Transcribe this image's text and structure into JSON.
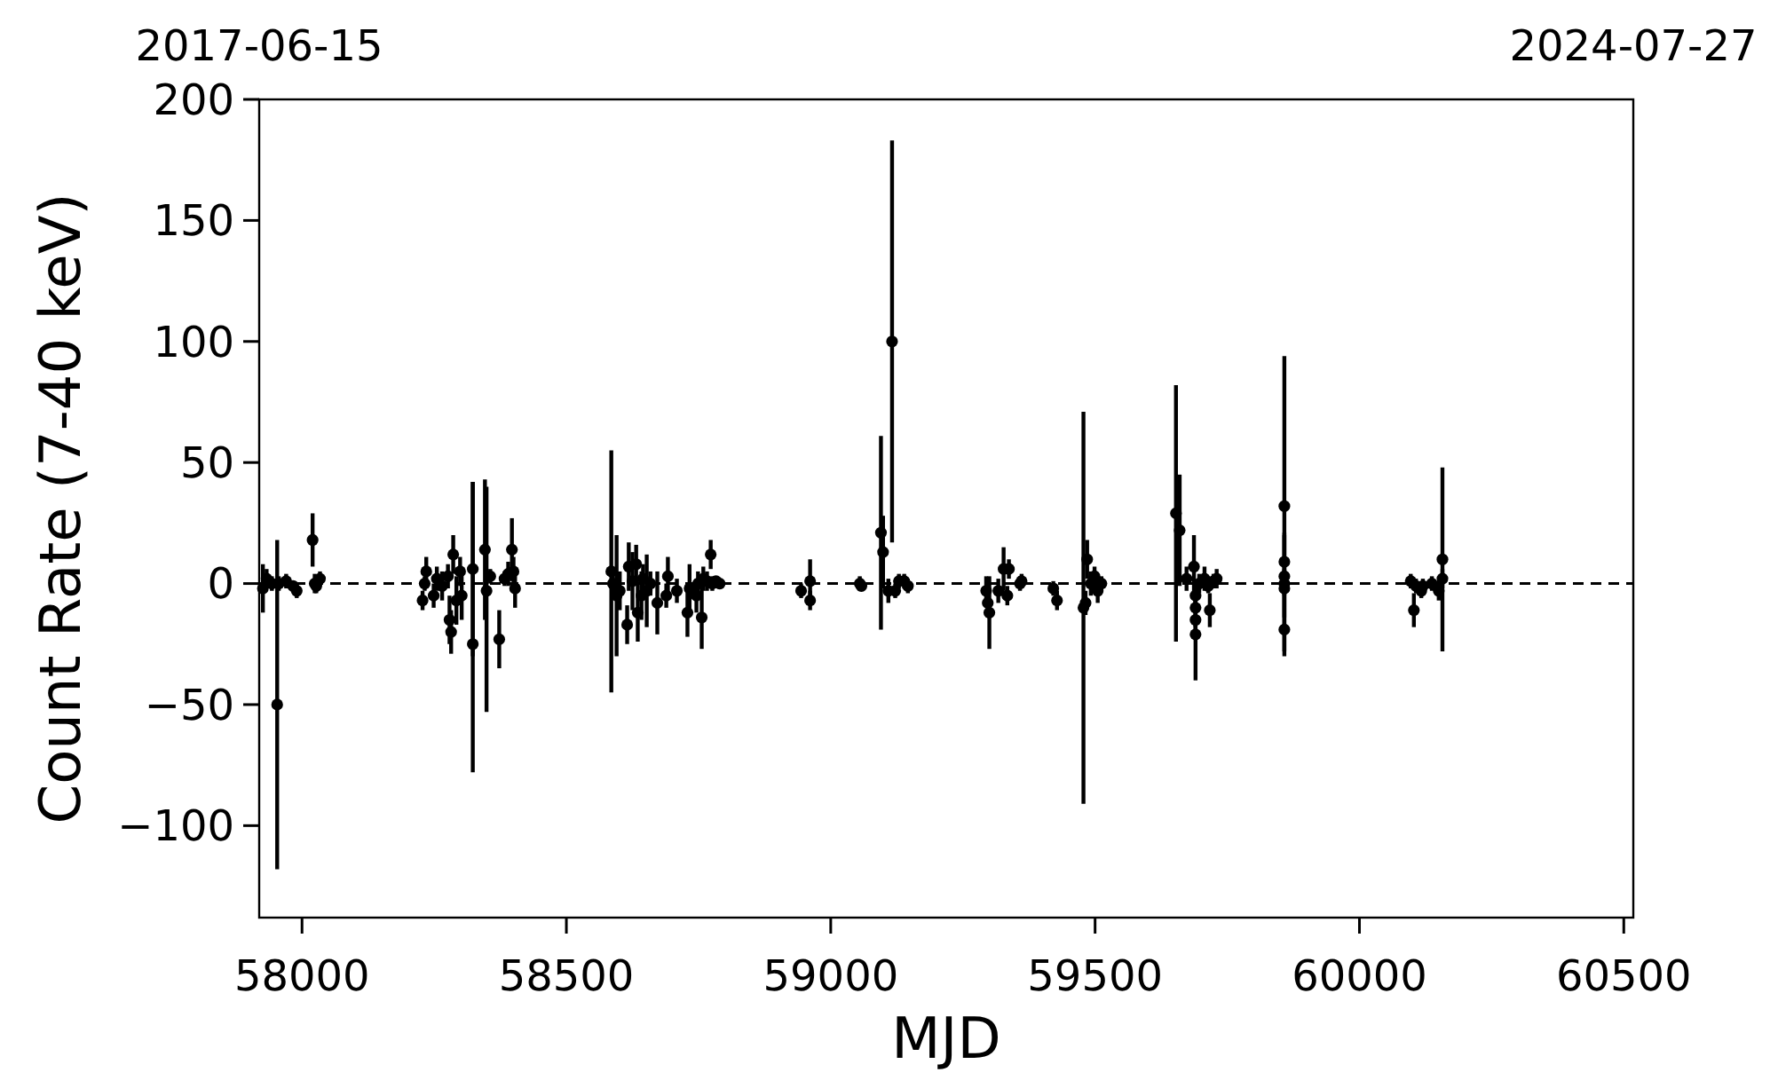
{
  "chart_data": {
    "type": "scatter",
    "xlabel": "MJD",
    "ylabel": "Count Rate (7-40 keV)",
    "xlim": [
      57919,
      60518
    ],
    "xticks": [
      58000,
      58500,
      59000,
      59500,
      60000,
      60500
    ],
    "x2lim": [
      "2017-06-15",
      "2024-07-27"
    ],
    "x2ticks": [
      "2017-06-15",
      "2024-07-27"
    ],
    "ylim": [
      -138,
      200
    ],
    "yticks": [
      -100,
      -50,
      0,
      50,
      100,
      150,
      200
    ],
    "grid": false,
    "marker": "circle",
    "ref_lines": [
      {
        "axis": "y",
        "value": 0,
        "color": "#000000",
        "line_style": "dashed"
      }
    ],
    "series": [
      {
        "color": "#000000",
        "x": [
          57926,
          57933,
          57943,
          57953,
          57956,
          57970,
          57983,
          57990,
          58020,
          58024,
          58027,
          58034,
          58228,
          58232,
          58235,
          58249,
          58255,
          58265,
          58276,
          58279,
          58282,
          58286,
          58292,
          58299,
          58302,
          58323,
          58323,
          58346,
          58349,
          58356,
          58373,
          58383,
          58390,
          58397,
          58400,
          58403,
          58585,
          58588,
          58595,
          58601,
          58615,
          58618,
          58625,
          58632,
          58635,
          58642,
          58645,
          58652,
          58659,
          58672,
          58689,
          58692,
          58709,
          58729,
          58733,
          58746,
          58749,
          58756,
          58759,
          58766,
          58773,
          58776,
          58783,
          58790,
          58944,
          58961,
          58961,
          59055,
          59058,
          59095,
          59099,
          59109,
          59116,
          59122,
          59129,
          59139,
          59146,
          59294,
          59297,
          59300,
          59317,
          59327,
          59334,
          59337,
          59358,
          59361,
          59421,
          59428,
          59478,
          59482,
          59485,
          59492,
          59499,
          59505,
          59512,
          59653,
          59660,
          59673,
          59687,
          59690,
          59690,
          59690,
          59690,
          59697,
          59707,
          59714,
          59717,
          59724,
          59730,
          59858,
          59858,
          59858,
          59858,
          59858,
          59858,
          60097,
          60103,
          60107,
          60117,
          60120,
          60137,
          60150,
          60157,
          60157
        ],
        "values": [
          -2,
          2,
          0,
          -50,
          0,
          1,
          -1,
          -3,
          18,
          0,
          -1,
          2,
          -7,
          0,
          5,
          -5,
          2,
          -1,
          3,
          -15,
          -20,
          12,
          -7,
          5,
          -5,
          6,
          -25,
          14,
          -3,
          3,
          -23,
          2,
          4,
          14,
          5,
          -2,
          5,
          0,
          -5,
          -3,
          -17,
          7,
          1,
          8,
          -12,
          -5,
          2,
          -3,
          0,
          -8,
          -5,
          3,
          -3,
          -12,
          -2,
          -5,
          0,
          -14,
          2,
          1,
          12,
          0,
          1,
          0,
          -3,
          1,
          -7,
          0,
          -1,
          21,
          13,
          -3,
          100,
          -3,
          1,
          1,
          -1,
          -3,
          -8,
          -12,
          -3,
          6,
          -5,
          6,
          0,
          1,
          -2,
          -7,
          -10,
          -8,
          10,
          0,
          3,
          -3,
          0,
          29,
          22,
          2,
          7,
          -5,
          -10,
          -15,
          -21,
          0,
          2,
          -1,
          -11,
          1,
          2,
          32,
          9,
          3,
          0,
          -2,
          -19,
          1,
          -11,
          -1,
          -3,
          -1,
          0,
          -3,
          10,
          2
        ],
        "errors": [
          10,
          4,
          3,
          68,
          3,
          3,
          2,
          3,
          11,
          4,
          3,
          3,
          4,
          3,
          6,
          5,
          5,
          6,
          5,
          10,
          9,
          8,
          10,
          6,
          10,
          36,
          [
            -78,
            42
          ],
          29,
          [
            -53,
            40
          ],
          3,
          12,
          3,
          5,
          13,
          6,
          8,
          50,
          5,
          25,
          8,
          8,
          10,
          12,
          8,
          12,
          10,
          6,
          15,
          5,
          13,
          5,
          8,
          5,
          10,
          10,
          7,
          5,
          13,
          5,
          4,
          6,
          3,
          2,
          2,
          3,
          9,
          4,
          3,
          2,
          40,
          15,
          5,
          83,
          3,
          3,
          3,
          3,
          6,
          6,
          15,
          5,
          9,
          4,
          4,
          3,
          3,
          3,
          4,
          81,
          5,
          8,
          5,
          4,
          5,
          3,
          53,
          23,
          5,
          13,
          5,
          8,
          8,
          19,
          4,
          5,
          3,
          7,
          3,
          4,
          62,
          12,
          17,
          5,
          8,
          9,
          3,
          7,
          3,
          3,
          3,
          3,
          4,
          38,
          4
        ]
      }
    ]
  }
}
